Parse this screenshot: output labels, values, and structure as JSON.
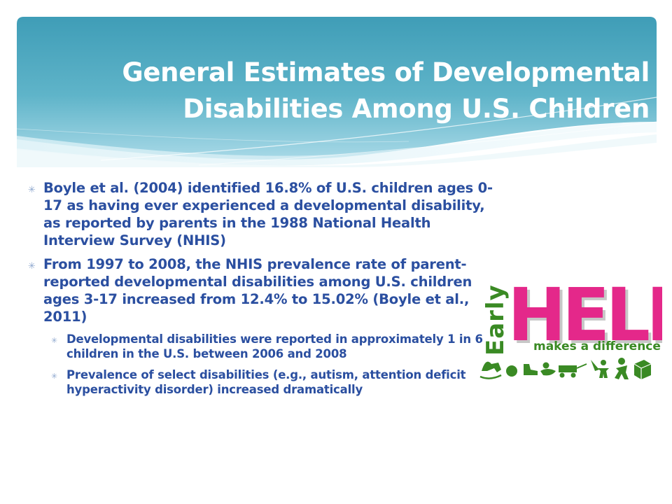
{
  "slide": {
    "title_lines": [
      "General Estimates of Developmental",
      "Disabilities Among U.S. Children"
    ],
    "bullets": [
      {
        "level": 1,
        "text": "Boyle et al. (2004) identified 16.8% of U.S. children ages 0-17 as having ever experienced a developmental disability, as reported by parents in the 1988 National Health Interview Survey (NHIS)"
      },
      {
        "level": 1,
        "text": "From 1997 to 2008, the NHIS prevalence rate of parent-reported developmental disabilities among U.S. children ages 3-17 increased from 12.4% to 15.02% (Boyle et al., 2011)"
      },
      {
        "level": 2,
        "text": "Developmental disabilities were reported in approximately 1 in 6 children in the U.S. between 2006 and 2008"
      },
      {
        "level": 2,
        "text": "Prevalence of select disabilities (e.g., autism, attention deficit hyperactivity disorder) increased dramatically"
      }
    ],
    "bullet_marker": "✳"
  },
  "logo": {
    "word_early": "Early",
    "word_help": "HELP",
    "tagline": "makes a difference!",
    "icons": [
      "rocking-horse-icon",
      "ball-icon",
      "shoe-icon",
      "duck-icon",
      "wagon-icon",
      "kite-icon",
      "gingerbread-man-icon",
      "child-icon",
      "block-icon"
    ]
  },
  "colors": {
    "banner_top": "#3f9db7",
    "banner_bottom": "#b9e2ee",
    "title_text": "#ffffff",
    "body_text": "#2b4fa0",
    "bullet_marker": "#8fa8cf",
    "logo_magenta": "#e4288a",
    "logo_green": "#3a8a24"
  }
}
